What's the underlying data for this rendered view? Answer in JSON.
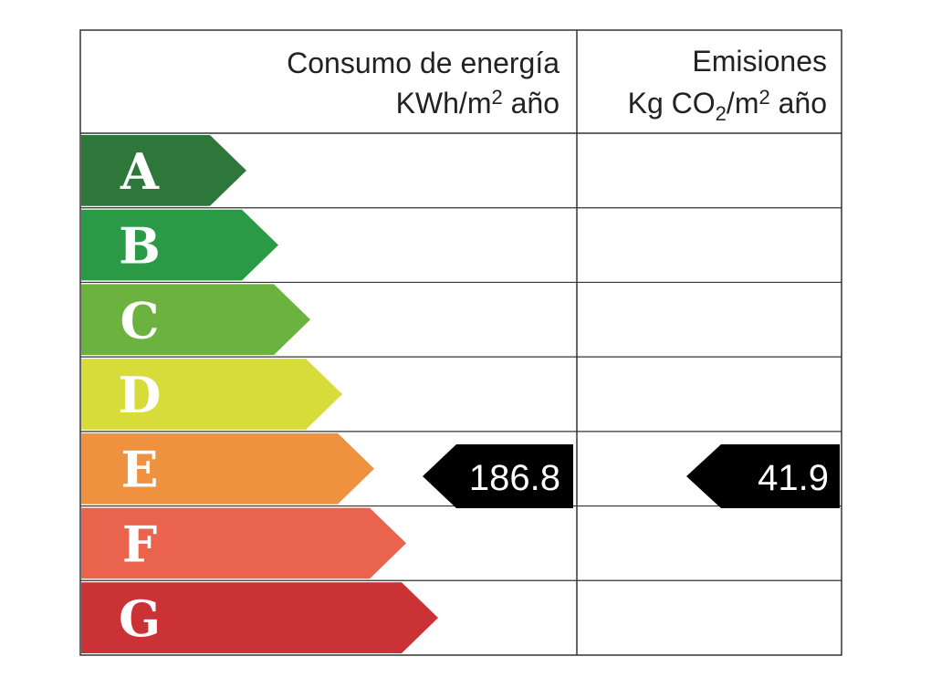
{
  "header": {
    "energy": {
      "title": "Consumo de energía",
      "unit": [
        "KWh/m",
        "2",
        " año"
      ]
    },
    "emissions": {
      "title": "Emisiones",
      "unit": [
        "Kg CO",
        "2",
        "/m",
        "2",
        " año"
      ]
    }
  },
  "ratings": [
    {
      "letter": "A",
      "color": "#2e773a"
    },
    {
      "letter": "B",
      "color": "#2a9a47"
    },
    {
      "letter": "C",
      "color": "#6cb23f"
    },
    {
      "letter": "D",
      "color": "#d7dc3a"
    },
    {
      "letter": "E",
      "color": "#ef923f"
    },
    {
      "letter": "F",
      "color": "#e9634d"
    },
    {
      "letter": "G",
      "color": "#cb3235"
    }
  ],
  "energy_value": 186.8,
  "emissions_value": 41.9
}
